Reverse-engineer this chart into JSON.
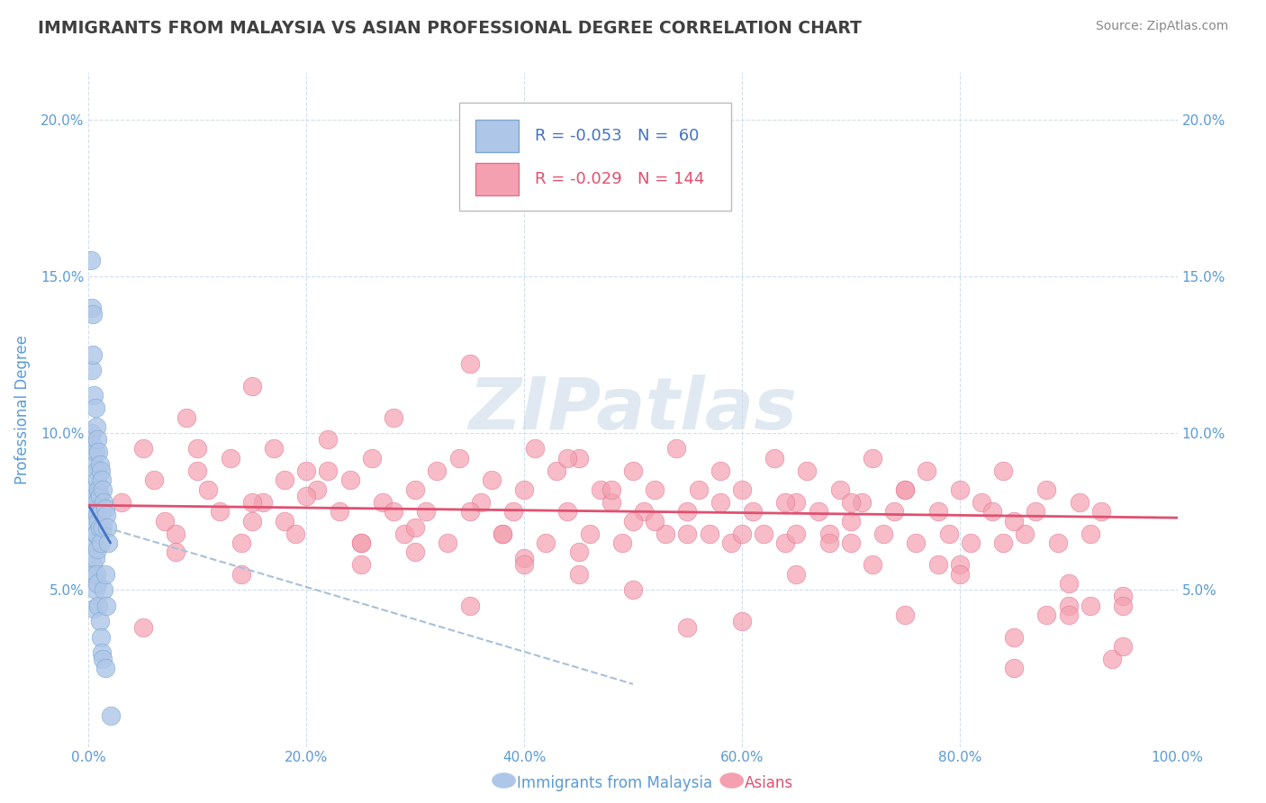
{
  "title": "IMMIGRANTS FROM MALAYSIA VS ASIAN PROFESSIONAL DEGREE CORRELATION CHART",
  "source": "Source: ZipAtlas.com",
  "ylabel": "Professional Degree",
  "watermark": "ZIPatlas",
  "legend_blue_label": "Immigrants from Malaysia",
  "legend_pink_label": "Asians",
  "blue_R": -0.053,
  "blue_N": 60,
  "pink_R": -0.029,
  "pink_N": 144,
  "x_min": 0.0,
  "x_max": 1.0,
  "y_min": 0.0,
  "y_max": 0.215,
  "y_ticks": [
    0.0,
    0.05,
    0.1,
    0.15,
    0.2
  ],
  "y_tick_labels": [
    "",
    "5.0%",
    "10.0%",
    "15.0%",
    "20.0%"
  ],
  "x_ticks": [
    0.0,
    0.2,
    0.4,
    0.6,
    0.8,
    1.0
  ],
  "x_tick_labels": [
    "0.0%",
    "20.0%",
    "40.0%",
    "60.0%",
    "80.0%",
    "100.0%"
  ],
  "blue_scatter_x": [
    0.002,
    0.003,
    0.003,
    0.003,
    0.003,
    0.004,
    0.004,
    0.004,
    0.004,
    0.004,
    0.005,
    0.005,
    0.005,
    0.005,
    0.005,
    0.005,
    0.006,
    0.006,
    0.006,
    0.006,
    0.006,
    0.006,
    0.007,
    0.007,
    0.007,
    0.007,
    0.007,
    0.008,
    0.008,
    0.008,
    0.008,
    0.008,
    0.009,
    0.009,
    0.009,
    0.009,
    0.01,
    0.01,
    0.01,
    0.01,
    0.011,
    0.011,
    0.011,
    0.011,
    0.012,
    0.012,
    0.012,
    0.013,
    0.013,
    0.013,
    0.014,
    0.014,
    0.015,
    0.015,
    0.015,
    0.016,
    0.016,
    0.017,
    0.018,
    0.02
  ],
  "blue_scatter_y": [
    0.155,
    0.1,
    0.12,
    0.14,
    0.082,
    0.138,
    0.125,
    0.096,
    0.072,
    0.058,
    0.112,
    0.09,
    0.076,
    0.065,
    0.055,
    0.044,
    0.108,
    0.094,
    0.08,
    0.068,
    0.06,
    0.05,
    0.102,
    0.088,
    0.078,
    0.068,
    0.055,
    0.098,
    0.085,
    0.074,
    0.063,
    0.052,
    0.094,
    0.082,
    0.072,
    0.045,
    0.09,
    0.08,
    0.07,
    0.04,
    0.088,
    0.075,
    0.065,
    0.035,
    0.085,
    0.075,
    0.03,
    0.082,
    0.07,
    0.028,
    0.078,
    0.05,
    0.076,
    0.055,
    0.025,
    0.074,
    0.045,
    0.07,
    0.065,
    0.01
  ],
  "pink_scatter_x": [
    0.03,
    0.05,
    0.06,
    0.07,
    0.08,
    0.09,
    0.1,
    0.11,
    0.12,
    0.13,
    0.14,
    0.15,
    0.16,
    0.17,
    0.18,
    0.19,
    0.2,
    0.21,
    0.22,
    0.23,
    0.24,
    0.25,
    0.26,
    0.27,
    0.28,
    0.29,
    0.3,
    0.31,
    0.32,
    0.33,
    0.34,
    0.35,
    0.36,
    0.37,
    0.38,
    0.39,
    0.4,
    0.41,
    0.42,
    0.43,
    0.44,
    0.45,
    0.46,
    0.47,
    0.48,
    0.49,
    0.5,
    0.51,
    0.52,
    0.53,
    0.54,
    0.55,
    0.56,
    0.57,
    0.58,
    0.59,
    0.6,
    0.61,
    0.62,
    0.63,
    0.64,
    0.65,
    0.66,
    0.67,
    0.68,
    0.69,
    0.7,
    0.71,
    0.72,
    0.73,
    0.74,
    0.75,
    0.76,
    0.77,
    0.78,
    0.79,
    0.8,
    0.81,
    0.82,
    0.83,
    0.84,
    0.85,
    0.86,
    0.87,
    0.88,
    0.89,
    0.9,
    0.91,
    0.92,
    0.93,
    0.94,
    0.95,
    0.15,
    0.25,
    0.35,
    0.45,
    0.55,
    0.65,
    0.75,
    0.85,
    0.2,
    0.3,
    0.4,
    0.5,
    0.6,
    0.7,
    0.8,
    0.9,
    0.1,
    0.95,
    0.18,
    0.28,
    0.38,
    0.48,
    0.58,
    0.68,
    0.78,
    0.88,
    0.14,
    0.44,
    0.64,
    0.84,
    0.22,
    0.52,
    0.72,
    0.92,
    0.08,
    0.35,
    0.55,
    0.75,
    0.45,
    0.65,
    0.85,
    0.25,
    0.95,
    0.05,
    0.7,
    0.4,
    0.6,
    0.8,
    0.5,
    0.3,
    0.9,
    0.15
  ],
  "pink_scatter_y": [
    0.078,
    0.095,
    0.085,
    0.072,
    0.068,
    0.105,
    0.088,
    0.082,
    0.075,
    0.092,
    0.065,
    0.115,
    0.078,
    0.095,
    0.072,
    0.068,
    0.088,
    0.082,
    0.098,
    0.075,
    0.085,
    0.065,
    0.092,
    0.078,
    0.105,
    0.068,
    0.082,
    0.075,
    0.088,
    0.065,
    0.092,
    0.122,
    0.078,
    0.085,
    0.068,
    0.075,
    0.082,
    0.095,
    0.065,
    0.088,
    0.075,
    0.092,
    0.068,
    0.082,
    0.078,
    0.065,
    0.088,
    0.075,
    0.082,
    0.068,
    0.095,
    0.075,
    0.082,
    0.068,
    0.088,
    0.065,
    0.082,
    0.075,
    0.068,
    0.092,
    0.065,
    0.078,
    0.088,
    0.075,
    0.068,
    0.082,
    0.065,
    0.078,
    0.092,
    0.068,
    0.075,
    0.082,
    0.065,
    0.088,
    0.075,
    0.068,
    0.082,
    0.065,
    0.078,
    0.075,
    0.088,
    0.025,
    0.068,
    0.075,
    0.082,
    0.065,
    0.052,
    0.078,
    0.068,
    0.075,
    0.028,
    0.048,
    0.072,
    0.058,
    0.045,
    0.062,
    0.038,
    0.055,
    0.042,
    0.035,
    0.08,
    0.07,
    0.06,
    0.05,
    0.04,
    0.072,
    0.058,
    0.045,
    0.095,
    0.032,
    0.085,
    0.075,
    0.068,
    0.082,
    0.078,
    0.065,
    0.058,
    0.042,
    0.055,
    0.092,
    0.078,
    0.065,
    0.088,
    0.072,
    0.058,
    0.045,
    0.062,
    0.075,
    0.068,
    0.082,
    0.055,
    0.068,
    0.072,
    0.065,
    0.045,
    0.038,
    0.078,
    0.058,
    0.068,
    0.055,
    0.072,
    0.062,
    0.042,
    0.078
  ],
  "blue_line_color": "#4472c4",
  "pink_line_color": "#e05070",
  "blue_dot_color": "#aec6e8",
  "pink_dot_color": "#f4a0b0",
  "blue_dot_edge": "#7aa8d0",
  "pink_dot_edge": "#e07090",
  "dashed_line_color": "#a8c0d8",
  "grid_color": "#d0dff0",
  "title_color": "#404040",
  "axis_label_color": "#5b9bd5",
  "source_color": "#888888",
  "watermark_color": "#c8d8e8",
  "background_color": "#ffffff",
  "blue_line_start_x": 0.0,
  "blue_line_start_y": 0.077,
  "blue_line_end_x": 0.02,
  "blue_line_end_y": 0.065,
  "pink_line_start_x": 0.0,
  "pink_line_start_y": 0.077,
  "pink_line_end_x": 1.0,
  "pink_line_end_y": 0.073,
  "dash_line_start_x": 0.015,
  "dash_line_start_y": 0.07,
  "dash_line_end_x": 0.5,
  "dash_line_end_y": 0.02
}
